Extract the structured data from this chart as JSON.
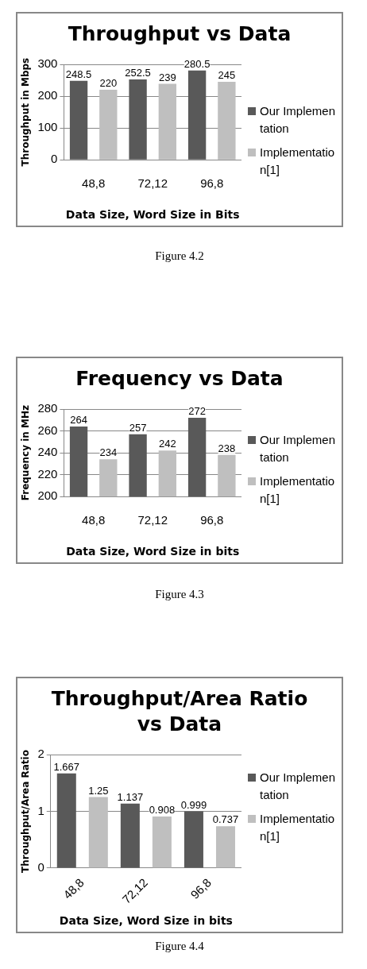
{
  "chart_data": [
    {
      "type": "bar",
      "title": "Throughput vs Data",
      "xlabel": "Data Size, Word Size in Bits",
      "ylabel": "Throughput in Mbps",
      "categories": [
        "48,8",
        "72,12",
        "96,8"
      ],
      "series": [
        {
          "name": "Our Implementation",
          "color": "#595959",
          "values": [
            248.5,
            252.5,
            280.5
          ]
        },
        {
          "name": "Implementation[1]",
          "color": "#bfbfbf",
          "values": [
            220,
            239,
            245
          ]
        }
      ],
      "ylim": [
        0,
        300
      ],
      "yticks": [
        0,
        100,
        200,
        300
      ],
      "grid": "y",
      "legend": "right",
      "data_labels": true,
      "annotations": [
        "Figure 4.2"
      ]
    },
    {
      "type": "bar",
      "title": "Frequency vs Data",
      "xlabel": "Data Size, Word Size in bits",
      "ylabel": "Frequency in MHz",
      "categories": [
        "48,8",
        "72,12",
        "96,8"
      ],
      "series": [
        {
          "name": "Our Implementation",
          "color": "#595959",
          "values": [
            264,
            257,
            272
          ]
        },
        {
          "name": "Implementation[1]",
          "color": "#bfbfbf",
          "values": [
            234,
            242,
            238
          ]
        }
      ],
      "ylim": [
        200,
        280
      ],
      "yticks": [
        200,
        220,
        240,
        260,
        280
      ],
      "grid": "y",
      "legend": "right",
      "data_labels": true,
      "annotations": [
        "Figure 4.3"
      ]
    },
    {
      "type": "bar",
      "title": "Throughput/Area Ratio vs Data",
      "xlabel": "Data Size, Word Size in bits",
      "ylabel": "Throughput/Area Ratio",
      "categories": [
        "48,8",
        "72,12",
        "96,8"
      ],
      "series": [
        {
          "name": "Our Implementation",
          "color": "#595959",
          "values": [
            1.667,
            1.137,
            0.999
          ]
        },
        {
          "name": "Implementation[1]",
          "color": "#bfbfbf",
          "values": [
            1.25,
            0.908,
            0.737
          ]
        }
      ],
      "ylim": [
        0,
        2
      ],
      "yticks": [
        0,
        1,
        2
      ],
      "grid": "y",
      "legend": "right",
      "data_labels": true,
      "annotations": [
        "Figure 4.4"
      ]
    }
  ]
}
